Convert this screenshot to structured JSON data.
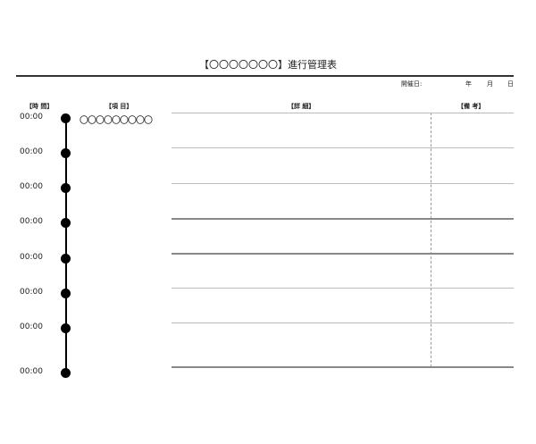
{
  "title": "【〇〇〇〇〇〇〇】進行管理表",
  "date": {
    "label": "開催日:",
    "year": "年",
    "month": "月",
    "day": "日"
  },
  "headers": {
    "time": "【時 間】",
    "item": "【項 目】",
    "detail": "【詳 細】",
    "note": "【備 考】"
  },
  "rows": [
    {
      "time": "00:00",
      "item": "〇〇〇〇〇〇〇〇〇"
    },
    {
      "time": "00:00"
    },
    {
      "time": "00:00"
    },
    {
      "time": "00:00"
    },
    {
      "time": "00:00"
    },
    {
      "time": "00:00"
    },
    {
      "time": "00:00"
    },
    {
      "time": "00:00"
    }
  ]
}
